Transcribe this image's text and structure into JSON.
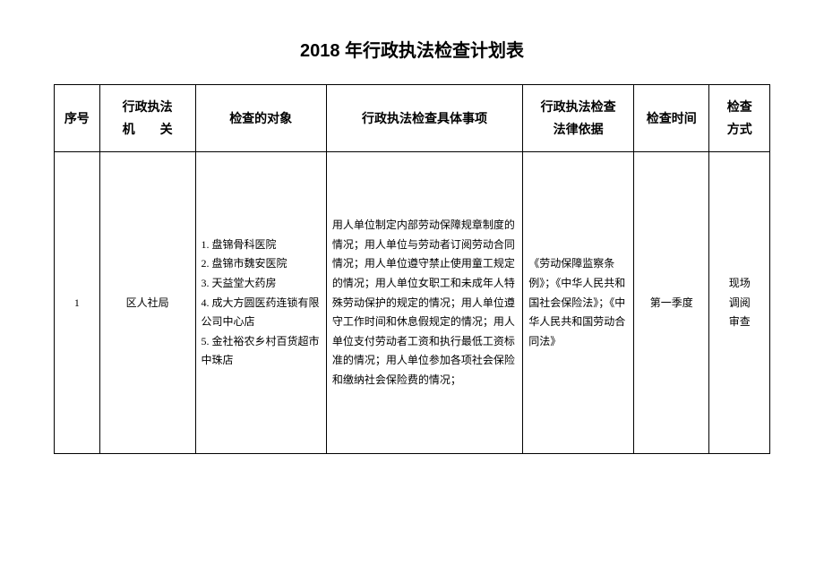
{
  "title": "2018 年行政执法检查计划表",
  "columns": [
    "序号",
    "行政执法\n机　　关",
    "检查的对象",
    "行政执法检查具体事项",
    "行政执法检查\n法律依据",
    "检查时间",
    "检查\n方式"
  ],
  "rows": [
    {
      "seq": "1",
      "agency": "区人社局",
      "targets": [
        "1. 盘锦骨科医院",
        "2. 盘锦市魏安医院",
        "3. 天益堂大药房",
        "4. 成大方圆医药连锁有限公司中心店",
        "5. 金社裕农乡村百货超市中珠店"
      ],
      "items": "用人单位制定内部劳动保障规章制度的情况；用人单位与劳动者订阅劳动合同情况；用人单位遵守禁止使用童工规定的情况；用人单位女职工和未成年人特殊劳动保护的规定的情况；用人单位遵守工作时间和休息假规定的情况；用人单位支付劳动者工资和执行最低工资标准的情况；用人单位参加各项社会保险和缴纳社会保险费的情况；",
      "basis": "《劳动保障监察条例》；《中华人民共和国社会保险法》；《中华人民共和国劳动合同法》",
      "time": "第一季度",
      "method": "现场\n调阅\n审查"
    }
  ]
}
